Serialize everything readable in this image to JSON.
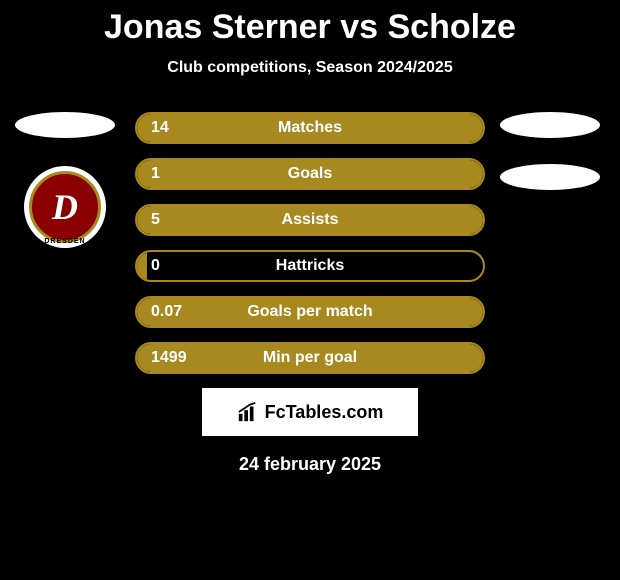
{
  "title": "Jonas Sterner vs Scholze",
  "subtitle": "Club competitions, Season 2024/2025",
  "date": "24 february 2025",
  "fctables_label": "FcTables.com",
  "club_left": {
    "letter": "D",
    "text_bottom": "DRESDEN"
  },
  "colors": {
    "bar_border": "#a8891f",
    "bar_fill": "#a8891f",
    "background": "#000000",
    "text": "#ffffff",
    "fctables_bg": "#ffffff",
    "club_red": "#8b0000"
  },
  "stats": [
    {
      "label": "Matches",
      "value": "14",
      "fill_pct": 100
    },
    {
      "label": "Goals",
      "value": "1",
      "fill_pct": 100
    },
    {
      "label": "Assists",
      "value": "5",
      "fill_pct": 100
    },
    {
      "label": "Hattricks",
      "value": "0",
      "fill_pct": 3
    },
    {
      "label": "Goals per match",
      "value": "0.07",
      "fill_pct": 100
    },
    {
      "label": "Min per goal",
      "value": "1499",
      "fill_pct": 100
    }
  ]
}
